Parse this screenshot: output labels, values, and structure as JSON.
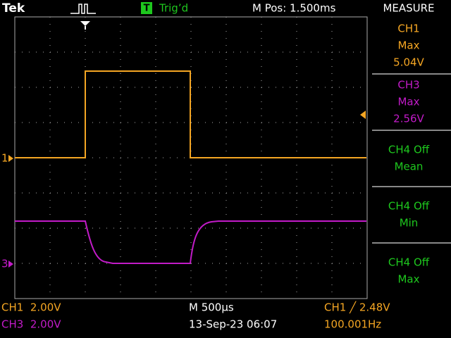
{
  "header": {
    "brand": "Tek",
    "trigger_mark": "T",
    "trigger_status": "Trig’d",
    "position": "M Pos: 1.500ms"
  },
  "measure": {
    "title": "MEASURE",
    "items": [
      {
        "lines": [
          "CH1",
          "Max",
          "5.04V"
        ]
      },
      {
        "lines": [
          "CH3",
          "Max",
          "2.56V"
        ]
      },
      {
        "lines": [
          "CH4 Off",
          "Mean"
        ]
      },
      {
        "lines": [
          "CH4 Off",
          "Min"
        ]
      },
      {
        "lines": [
          "CH4 Off",
          "Max"
        ]
      }
    ]
  },
  "channel_markers": [
    "1",
    "3"
  ],
  "footer": {
    "ch1_scale": "CH1  2.00V",
    "ch3_scale": "CH3  2.00V",
    "timebase": "M 500µs",
    "datetime": "13-Sep-23 06:07",
    "trigger_level": "CH1 ╱ 2.48V",
    "frequency": "100.001Hz"
  }
}
